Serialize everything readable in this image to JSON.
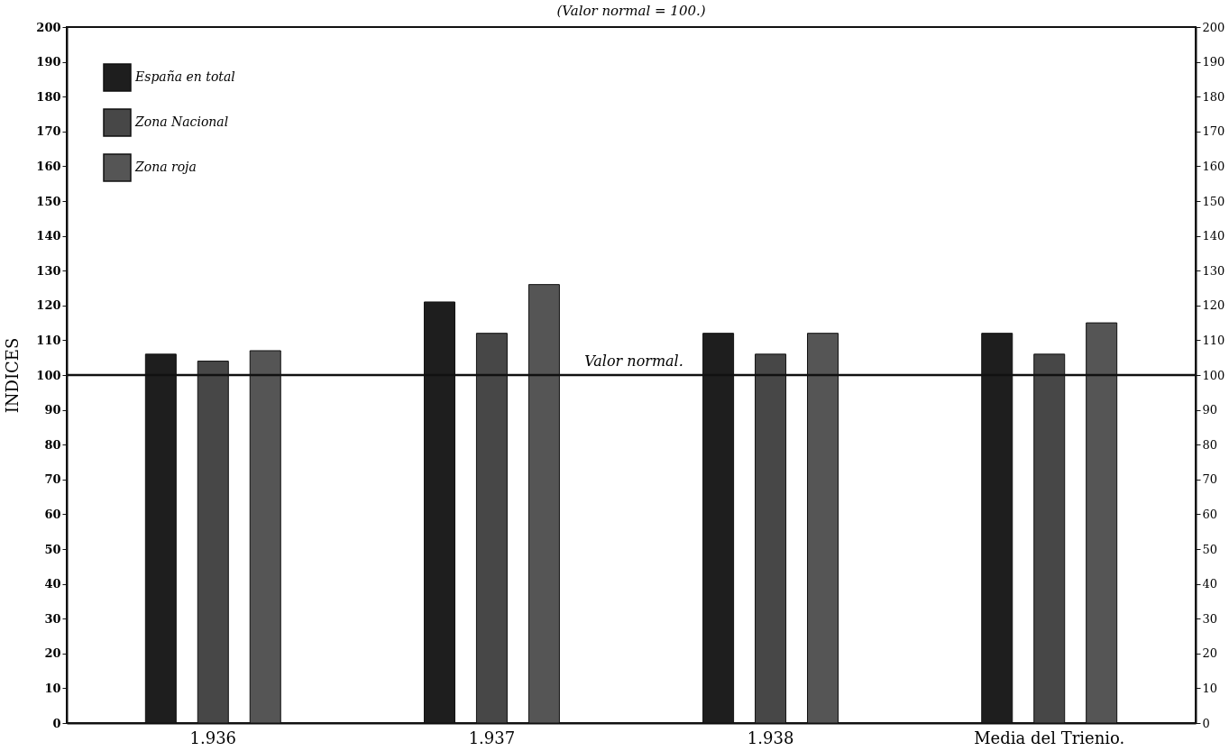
{
  "chart_data": {
    "type": "bar",
    "subtitle": "(Valor normal = 100.)",
    "ylabel": "INDICES",
    "categories": [
      "1.936",
      "1.937",
      "1.938",
      "Media del Trienio."
    ],
    "series": [
      {
        "name": "España en total",
        "color": "#1e1e1e",
        "values": [
          106,
          121,
          112,
          112
        ]
      },
      {
        "name": "Zona Nacional",
        "color": "#474747",
        "values": [
          104,
          112,
          106,
          106
        ]
      },
      {
        "name": "Zona roja",
        "color": "#555555",
        "values": [
          107,
          126,
          112,
          115
        ]
      }
    ],
    "ylim": [
      0,
      200
    ],
    "yticks": [
      0,
      10,
      20,
      30,
      40,
      50,
      60,
      70,
      80,
      90,
      100,
      110,
      120,
      130,
      140,
      150,
      160,
      170,
      180,
      190,
      200
    ],
    "y2lim": [
      0,
      200
    ],
    "y2ticks": [
      0,
      10,
      20,
      30,
      40,
      50,
      60,
      70,
      80,
      90,
      100,
      110,
      120,
      130,
      140,
      150,
      160,
      170,
      180,
      190,
      200
    ],
    "ref_lines": [
      {
        "axis": "y",
        "value": 100,
        "label": "Valor normal.",
        "color": "#111111"
      }
    ],
    "legend": "top left",
    "grid": false
  }
}
